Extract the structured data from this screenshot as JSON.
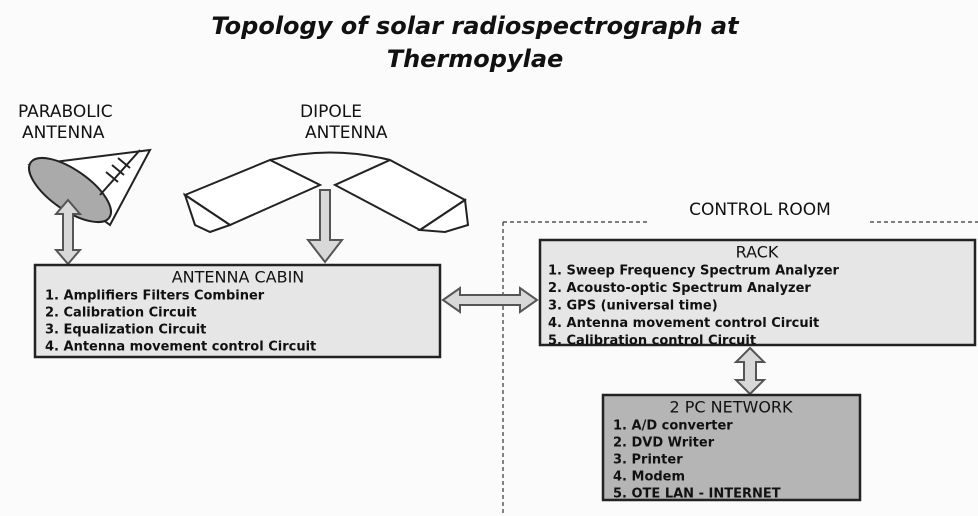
{
  "title": {
    "lines": [
      "Topology of solar radiospectrograph at",
      "Thermopylae"
    ]
  },
  "parabolic_label": {
    "lines": [
      "PARABOLIC",
      "ANTENNA"
    ]
  },
  "dipole_label": {
    "lines": [
      "DIPOLE",
      "ANTENNA"
    ]
  },
  "control_room_label": "CONTROL ROOM",
  "antenna_cabin": {
    "title": "ANTENNA CABIN",
    "items": [
      "1. Amplifiers Filters Combiner",
      "2. Calibration Circuit",
      "3. Equalization Circuit",
      "4. Antenna movement control Circuit"
    ]
  },
  "rack": {
    "title": "RACK",
    "items": [
      "1. Sweep Frequency Spectrum Analyzer",
      "2. Acousto-optic Spectrum Analyzer",
      "3. GPS (universal time)",
      "4. Antenna movement control Circuit",
      "5. Calibration control Circuit"
    ]
  },
  "pc_network": {
    "title": "2 PC NETWORK",
    "items": [
      "1. A/D converter",
      "2. DVD Writer",
      "3. Printer",
      "4. Modem",
      "5. OTE LAN - INTERNET"
    ]
  }
}
